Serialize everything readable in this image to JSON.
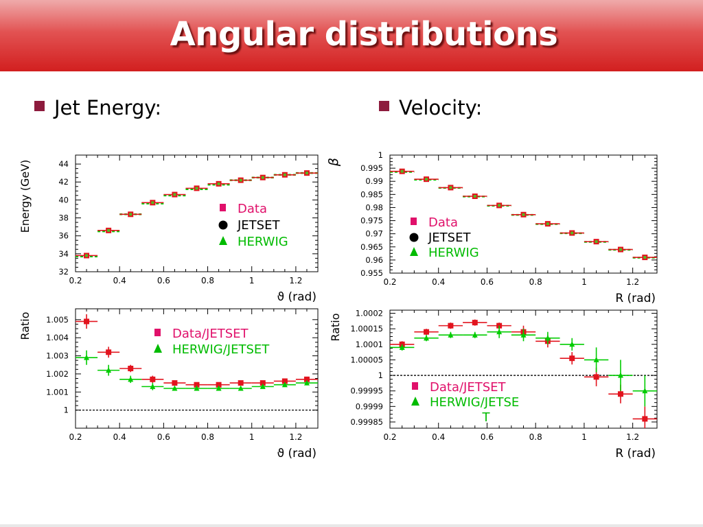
{
  "slide": {
    "title": "Angular distributions",
    "bullets": [
      {
        "text": "Jet Energy:"
      },
      {
        "text": "Velocity:"
      }
    ]
  },
  "colors": {
    "data": "#e2141e",
    "herwig": "#00cc00",
    "jetset": "#000000",
    "legend_data": "#e0106a",
    "legend_herwig": "#00bb00"
  },
  "chart_data": [
    {
      "type": "scatter",
      "xlabel": "ϑ (rad)",
      "ylabel": "Energy (GeV)",
      "xlim": [
        0.2,
        1.3
      ],
      "ylim": [
        32,
        45
      ],
      "xticks": [
        0.2,
        0.4,
        0.6,
        0.8,
        1,
        1.2
      ],
      "xticklabels": [
        "0.2",
        "0.4",
        "0.6",
        "0.8",
        "1",
        "1.2"
      ],
      "yticks": [
        32,
        34,
        36,
        38,
        40,
        42,
        44
      ],
      "yticklabels": [
        "32",
        "34",
        "36",
        "38",
        "40",
        "42",
        "44"
      ],
      "legend": [
        {
          "symbol": "square",
          "label": "Data"
        },
        {
          "symbol": "circle",
          "label": "JETSET"
        },
        {
          "symbol": "triangle",
          "label": "HERWIG"
        }
      ],
      "series": [
        {
          "name": "Data",
          "marker": "square",
          "x": [
            0.25,
            0.35,
            0.45,
            0.55,
            0.65,
            0.75,
            0.85,
            0.95,
            1.05,
            1.15,
            1.25
          ],
          "y": [
            33.8,
            36.6,
            38.4,
            39.7,
            40.6,
            41.3,
            41.8,
            42.2,
            42.5,
            42.8,
            43.0
          ],
          "xerr": 0.05
        },
        {
          "name": "HERWIG",
          "marker": "dashed",
          "x": [
            0.25,
            0.35,
            0.45,
            0.55,
            0.65,
            0.75,
            0.85,
            0.95,
            1.05,
            1.15,
            1.25
          ],
          "y": [
            33.7,
            36.5,
            38.4,
            39.6,
            40.5,
            41.2,
            41.7,
            42.2,
            42.5,
            42.8,
            43.0
          ],
          "xerr": 0.05
        }
      ]
    },
    {
      "type": "scatter",
      "xlabel": "R (rad)",
      "ylabel": "β",
      "xlim": [
        0.2,
        1.3
      ],
      "ylim": [
        0.955,
        1.0
      ],
      "xticks": [
        0.2,
        0.4,
        0.6,
        0.8,
        1,
        1.2
      ],
      "xticklabels": [
        "0.2",
        "0.4",
        "0.6",
        "0.8",
        "1",
        "1.2"
      ],
      "yticks": [
        0.955,
        0.96,
        0.965,
        0.97,
        0.975,
        0.98,
        0.985,
        0.99,
        0.995,
        1.0
      ],
      "yticklabels": [
        "0.955",
        "0.96",
        "0.965",
        "0.97",
        "0.975",
        "0.98",
        "0.985",
        "0.99",
        "0.995",
        "1"
      ],
      "legend": [
        {
          "symbol": "square",
          "label": "Data"
        },
        {
          "symbol": "circle",
          "label": "JETSET"
        },
        {
          "symbol": "triangle",
          "label": "HERWIG"
        }
      ],
      "series": [
        {
          "name": "Data",
          "marker": "square",
          "x": [
            0.25,
            0.35,
            0.45,
            0.55,
            0.65,
            0.75,
            0.85,
            0.95,
            1.05,
            1.15,
            1.25
          ],
          "y": [
            0.9938,
            0.9908,
            0.9876,
            0.9843,
            0.9808,
            0.9773,
            0.9738,
            0.9703,
            0.967,
            0.964,
            0.961
          ],
          "xerr": 0.05
        },
        {
          "name": "HERWIG",
          "marker": "dashed",
          "x": [
            0.25,
            0.35,
            0.45,
            0.55,
            0.65,
            0.75,
            0.85,
            0.95,
            1.05,
            1.15,
            1.25
          ],
          "y": [
            0.9936,
            0.9906,
            0.9875,
            0.9842,
            0.9807,
            0.9772,
            0.9737,
            0.9702,
            0.9669,
            0.9639,
            0.9609
          ],
          "xerr": 0.05
        }
      ]
    },
    {
      "type": "scatter",
      "xlabel": "ϑ (rad)",
      "ylabel": "Ratio",
      "xlim": [
        0.2,
        1.3
      ],
      "ylim": [
        0.999,
        1.0056
      ],
      "reference_line": 1,
      "xticks": [
        0.2,
        0.4,
        0.6,
        0.8,
        1,
        1.2
      ],
      "xticklabels": [
        "0.2",
        "0.4",
        "0.6",
        "0.8",
        "1",
        "1.2"
      ],
      "yticks": [
        1,
        1.001,
        1.002,
        1.003,
        1.004,
        1.005
      ],
      "yticklabels": [
        "1",
        "1.001",
        "1.002",
        "1.003",
        "1.004",
        "1.005"
      ],
      "legend": [
        {
          "symbol": "square",
          "label": "Data/JETSET"
        },
        {
          "symbol": "triangle",
          "label": "HERWIG/JETSET"
        }
      ],
      "series": [
        {
          "name": "Data/JETSET",
          "marker": "square",
          "x": [
            0.25,
            0.35,
            0.45,
            0.55,
            0.65,
            0.75,
            0.85,
            0.95,
            1.05,
            1.15,
            1.25
          ],
          "y": [
            1.0049,
            1.0032,
            1.0023,
            1.0017,
            1.0015,
            1.0014,
            1.0014,
            1.0015,
            1.0015,
            1.0016,
            1.0017
          ],
          "xerr": 0.05,
          "yerr": [
            0.0004,
            0.0003,
            0.0002,
            0.0002,
            0.0001,
            0.0001,
            0.0001,
            0.0001,
            0.0001,
            0.0001,
            0.0001
          ]
        },
        {
          "name": "HERWIG/JETSET",
          "marker": "triangle",
          "x": [
            0.25,
            0.35,
            0.45,
            0.55,
            0.65,
            0.75,
            0.85,
            0.95,
            1.05,
            1.15,
            1.25
          ],
          "y": [
            1.0029,
            1.0022,
            1.0017,
            1.0013,
            1.0012,
            1.0012,
            1.0012,
            1.0012,
            1.0013,
            1.0014,
            1.0015
          ],
          "xerr": 0.05,
          "yerr": [
            0.0004,
            0.0003,
            0.0002,
            0.0002,
            0.0001,
            0.0001,
            0.0001,
            0.0001,
            0.0001,
            0.0001,
            0.0001
          ]
        }
      ]
    },
    {
      "type": "scatter",
      "xlabel": "R (rad)",
      "ylabel": "Ratio",
      "xlim": [
        0.2,
        1.3
      ],
      "ylim": [
        0.99983,
        1.00021
      ],
      "reference_line": 1,
      "xticks": [
        0.2,
        0.4,
        0.6,
        0.8,
        1,
        1.2
      ],
      "xticklabels": [
        "0.2",
        "0.4",
        "0.6",
        "0.8",
        "1",
        "1.2"
      ],
      "yticks": [
        0.99985,
        0.9999,
        0.99995,
        1,
        1.00005,
        1.0001,
        1.00015,
        1.0002
      ],
      "yticklabels": [
        "0.99985",
        "0.9999",
        "0.99995",
        "1",
        "1.00005",
        "1.0001",
        "1.00015",
        "1.0002"
      ],
      "legend": [
        {
          "symbol": "square",
          "label": "Data/JETSET"
        },
        {
          "symbol": "triangle",
          "label": "HERWIG/JETSE\nT"
        }
      ],
      "series": [
        {
          "name": "Data/JETSET",
          "marker": "square",
          "x": [
            0.25,
            0.35,
            0.45,
            0.55,
            0.65,
            0.75,
            0.85,
            0.95,
            1.05,
            1.15,
            1.25
          ],
          "y": [
            1.0001,
            1.00014,
            1.00016,
            1.00017,
            1.00016,
            1.00014,
            1.00011,
            1.000055,
            0.999995,
            0.99994,
            0.99986
          ],
          "xerr": 0.05,
          "yerr": [
            1e-05,
            1e-05,
            1e-05,
            1e-05,
            1e-05,
            2e-05,
            2e-05,
            2e-05,
            3e-05,
            3e-05,
            4e-05
          ]
        },
        {
          "name": "HERWIG/JETSET",
          "marker": "triangle",
          "x": [
            0.25,
            0.35,
            0.45,
            0.55,
            0.65,
            0.75,
            0.85,
            0.95,
            1.05,
            1.15,
            1.25
          ],
          "y": [
            1.00009,
            1.00012,
            1.00013,
            1.00013,
            1.00014,
            1.00013,
            1.00012,
            1.0001,
            1.00005,
            1.0,
            0.99995
          ],
          "xerr": 0.05,
          "yerr": [
            1e-05,
            1e-05,
            1e-05,
            1e-05,
            2e-05,
            2e-05,
            2e-05,
            2e-05,
            4e-05,
            5e-05,
            5e-05
          ]
        }
      ]
    }
  ]
}
